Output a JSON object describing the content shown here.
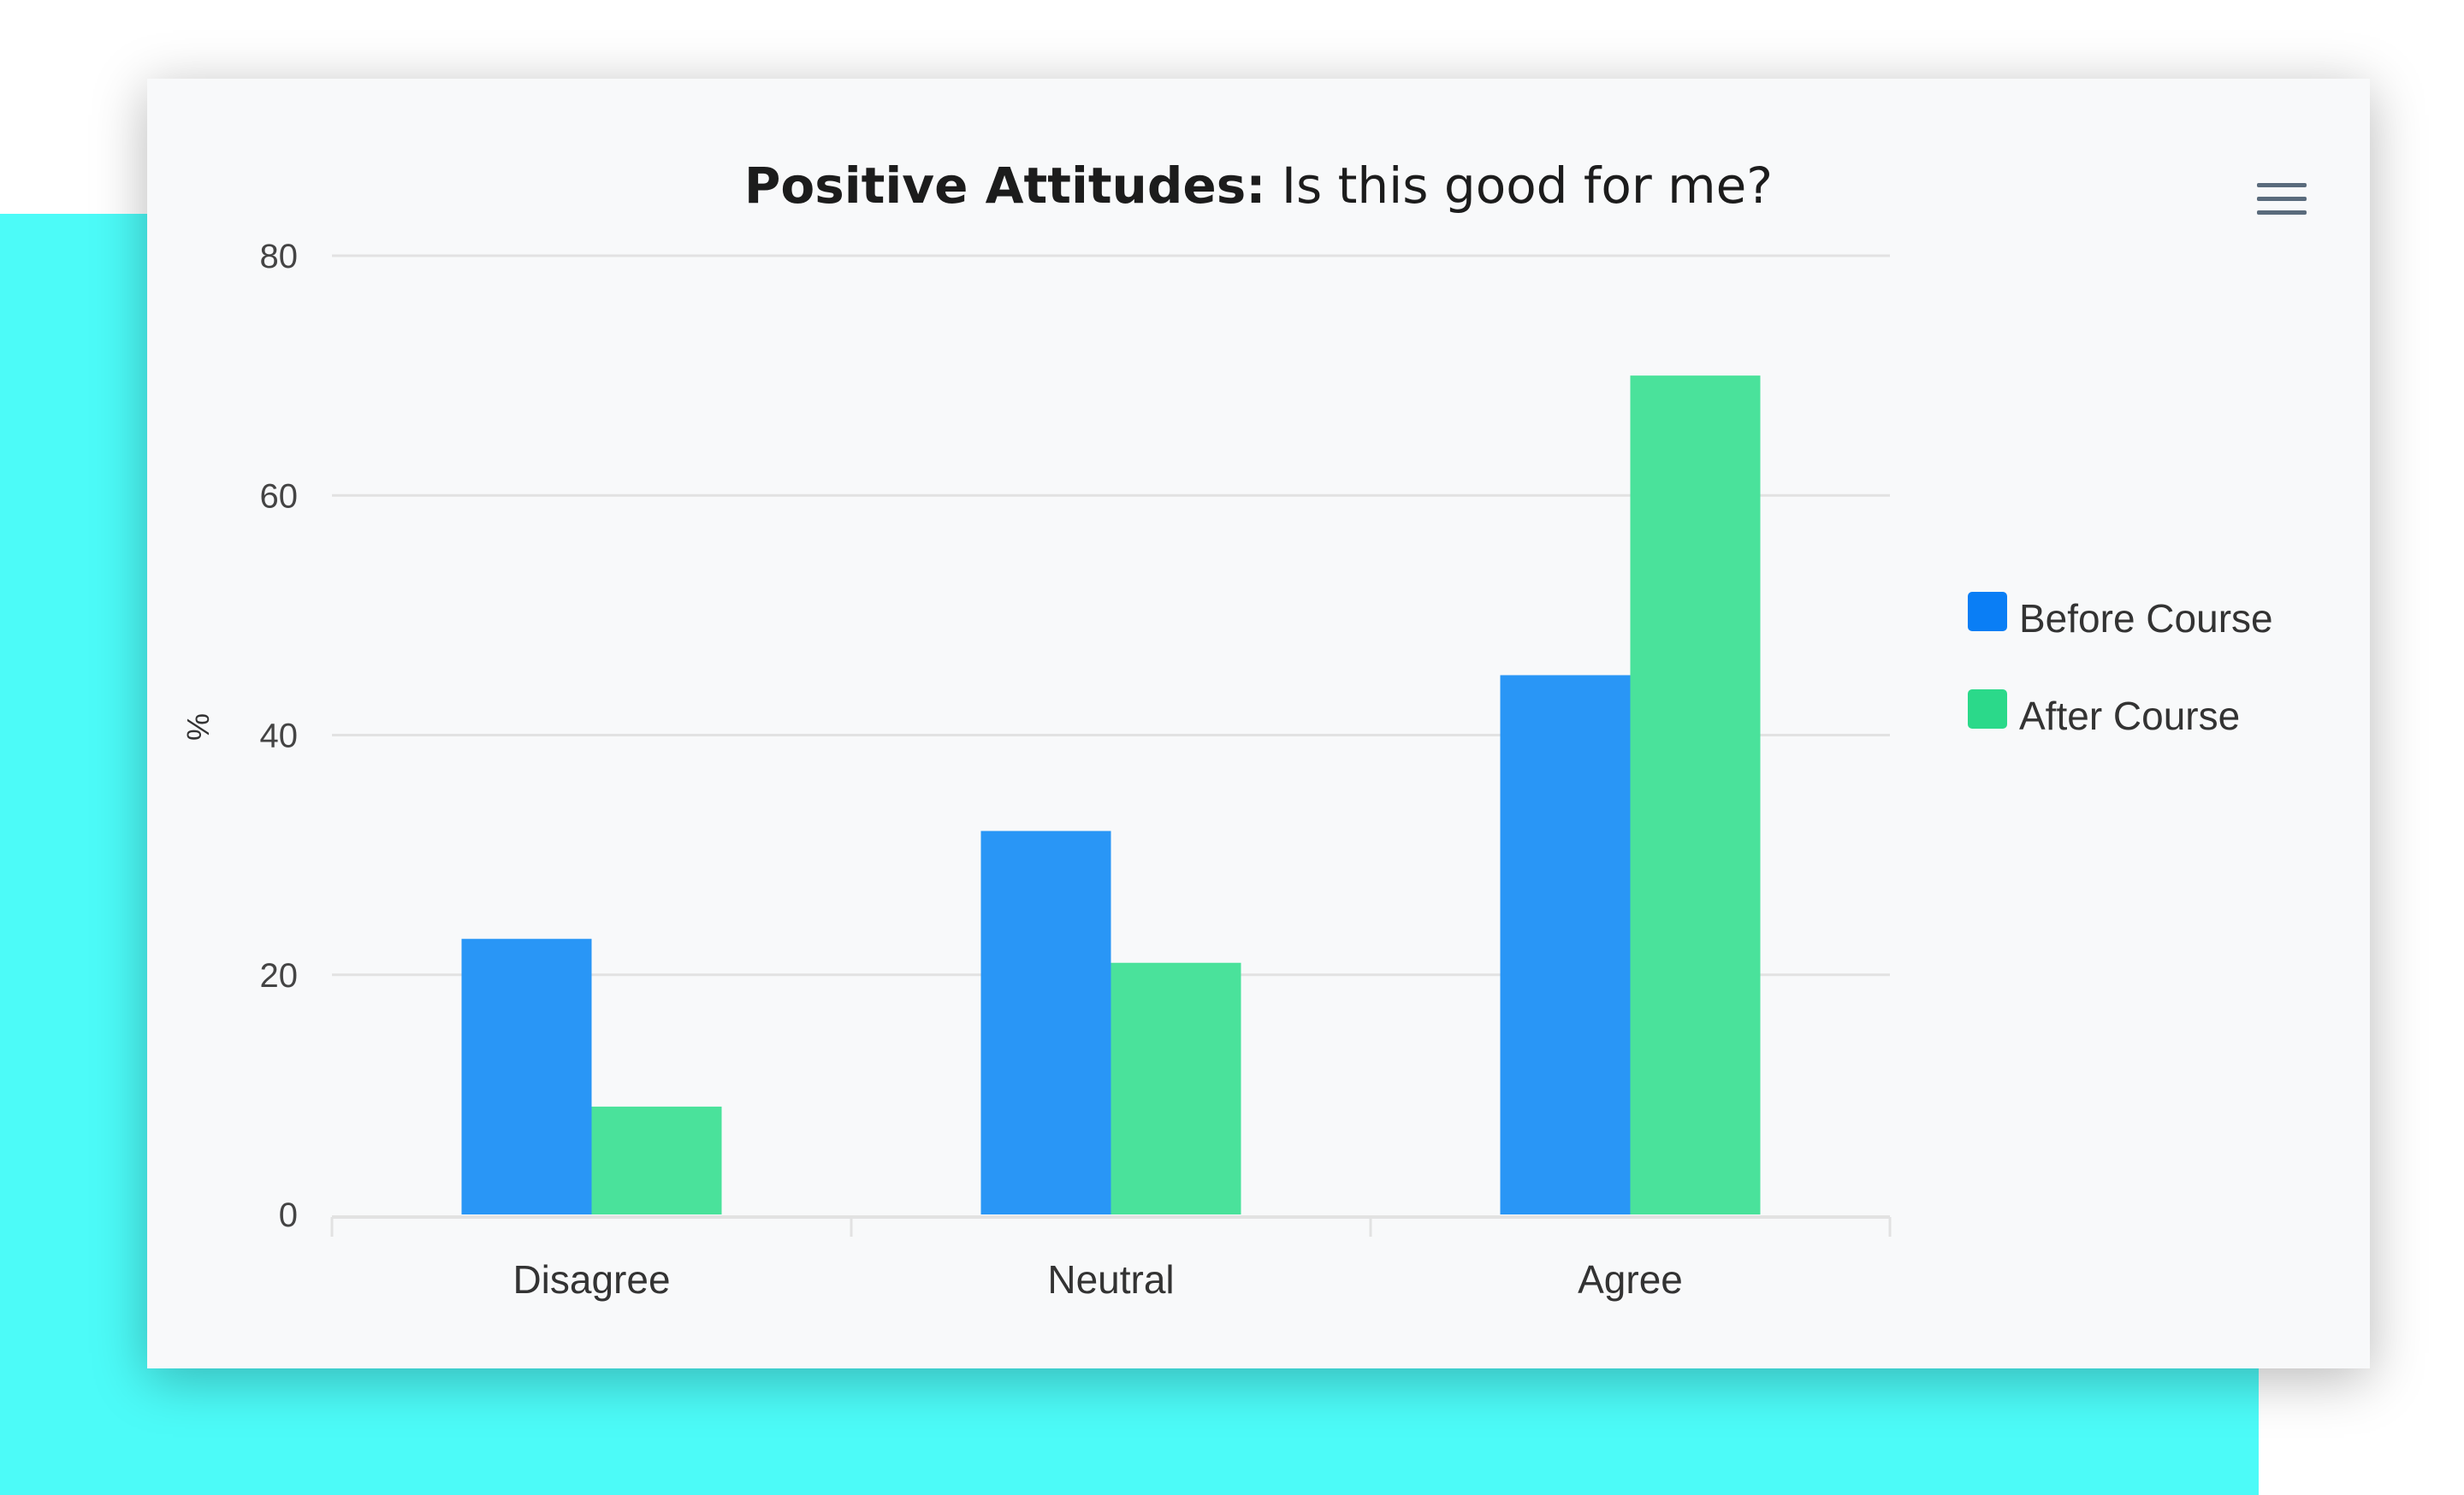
{
  "colors": {
    "background_accent": "#4cfbf8",
    "card_background": "#f8f9fa",
    "before_course": "#2996f6",
    "before_course_legend": "#0a7ef5",
    "after_course": "#4ae29b",
    "after_course_legend": "#2bd98a",
    "gridline": "#e2e2e2",
    "menu_icon": "#5a6b7c"
  },
  "menu_icon": "hamburger-menu-icon",
  "chart_data": {
    "type": "bar",
    "title": "Is this good for me?",
    "title_prefix": "Positive Attitudes:",
    "xlabel": "",
    "ylabel": "%",
    "ylim": [
      0,
      80
    ],
    "yticks": [
      0,
      20,
      40,
      60,
      80
    ],
    "categories": [
      "Disagree",
      "Neutral",
      "Agree"
    ],
    "series": [
      {
        "name": "Before Course",
        "values": [
          23,
          32,
          45
        ]
      },
      {
        "name": "After Course",
        "values": [
          9,
          21,
          70
        ]
      }
    ],
    "legend_placement": "right",
    "grid": true
  }
}
